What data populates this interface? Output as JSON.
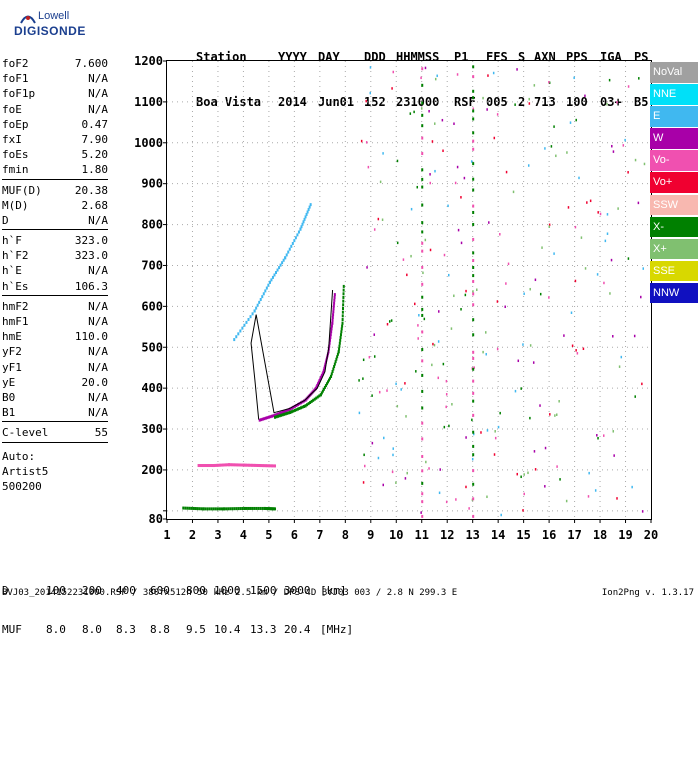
{
  "logo": {
    "line1": "Lowell",
    "line2": "DIGISONDE"
  },
  "header": {
    "labels": [
      "Station",
      "YYYY",
      "DAY",
      "DDD",
      "HHMMSS",
      "P1",
      "FFS",
      "S",
      "AXN",
      "PPS",
      "IGA",
      "PS"
    ],
    "values": [
      "Boa Vista",
      "2014",
      "Jun01",
      "152",
      "231000",
      "RSF",
      "005",
      "2",
      "713",
      "100",
      "03+",
      "B5"
    ]
  },
  "scaled_params": {
    "groups": [
      [
        {
          "name": "foF2",
          "value": "7.600"
        },
        {
          "name": "foF1",
          "value": "N/A"
        },
        {
          "name": "foF1p",
          "value": "N/A"
        },
        {
          "name": "foE",
          "value": "N/A"
        },
        {
          "name": "foEp",
          "value": "0.47"
        },
        {
          "name": "fxI",
          "value": "7.90"
        },
        {
          "name": "foEs",
          "value": "5.20"
        },
        {
          "name": "fmin",
          "value": "1.80"
        }
      ],
      [
        {
          "name": "MUF(D)",
          "value": "20.38"
        },
        {
          "name": "M(D)",
          "value": "2.68"
        },
        {
          "name": "D",
          "value": "N/A"
        }
      ],
      [
        {
          "name": "h`F",
          "value": "323.0"
        },
        {
          "name": "h`F2",
          "value": "323.0"
        },
        {
          "name": "h`E",
          "value": "N/A"
        },
        {
          "name": "h`Es",
          "value": "106.3"
        }
      ],
      [
        {
          "name": "hmF2",
          "value": "N/A"
        },
        {
          "name": "hmF1",
          "value": "N/A"
        },
        {
          "name": "hmE",
          "value": "110.0"
        },
        {
          "name": "yF2",
          "value": "N/A"
        },
        {
          "name": "yF1",
          "value": "N/A"
        },
        {
          "name": "yE",
          "value": "20.0"
        },
        {
          "name": "B0",
          "value": "N/A"
        },
        {
          "name": "B1",
          "value": "N/A"
        }
      ],
      [
        {
          "name": "C-level",
          "value": "55"
        }
      ]
    ],
    "auto_lines": [
      "Auto:",
      "Artist5",
      "500200"
    ]
  },
  "legend": [
    {
      "label": "NoVal",
      "color": "#a0a0a0"
    },
    {
      "label": "NNE",
      "color": "#00e0f8"
    },
    {
      "label": "E",
      "color": "#40b8f0"
    },
    {
      "label": "W",
      "color": "#a800a8"
    },
    {
      "label": "Vo-",
      "color": "#f050b0"
    },
    {
      "label": "Vo+",
      "color": "#f00030"
    },
    {
      "label": "SSW",
      "color": "#f8b8b0"
    },
    {
      "label": "X-",
      "color": "#008000"
    },
    {
      "label": "X+",
      "color": "#80c070"
    },
    {
      "label": "SSE",
      "color": "#d8d800"
    },
    {
      "label": "NNW",
      "color": "#1010c0"
    }
  ],
  "distance_table": {
    "d_label": "D",
    "d_values": [
      "100",
      "200",
      "400",
      "600",
      "800",
      "1000",
      "1500",
      "3000"
    ],
    "d_unit": "[km]",
    "muf_label": "MUF",
    "muf_values": [
      "8.0",
      "8.0",
      "8.3",
      "8.8",
      "9.5",
      "10.4",
      "13.3",
      "20.4"
    ],
    "muf_unit": "[MHz]"
  },
  "footer": {
    "file_info": "BVJ03_2014152231000.RSF / 380fx512h 50 kHz 2.5 km / DPS-4D BVJ03 003 / 2.8 N 299.3 E",
    "version": "Ion2Png v. 1.3.17"
  },
  "chart_data": {
    "type": "scatter",
    "xlabel": "",
    "ylabel": "",
    "xlim": [
      1,
      20
    ],
    "ylim": [
      80,
      1200
    ],
    "x_ticks": [
      1,
      2,
      3,
      4,
      5,
      6,
      7,
      8,
      9,
      10,
      11,
      12,
      13,
      14,
      15,
      16,
      17,
      18,
      19,
      20
    ],
    "y_ticks": [
      80,
      100,
      200,
      300,
      400,
      500,
      600,
      700,
      800,
      900,
      1000,
      1100,
      1200
    ],
    "y_tick_labels": [
      "80",
      "",
      "200",
      "300",
      "400",
      "500",
      "600",
      "700",
      "800",
      "900",
      "1000",
      "1100",
      "1200"
    ],
    "grid": "dotted vertical and horizontal",
    "traces": [
      {
        "name": "O-trace F2",
        "color": "#a800a8",
        "x": [
          4.6,
          5.2,
          5.8,
          6.4,
          6.8,
          7.1,
          7.3,
          7.45,
          7.55
        ],
        "y": [
          323,
          335,
          350,
          372,
          400,
          440,
          490,
          560,
          630
        ]
      },
      {
        "name": "X-trace F2",
        "color": "#008000",
        "x": [
          5.2,
          5.8,
          6.4,
          7.0,
          7.4,
          7.7,
          7.85,
          7.9
        ],
        "y": [
          330,
          342,
          358,
          385,
          430,
          490,
          560,
          650
        ]
      },
      {
        "name": "F2 layer trace",
        "color": "#000000",
        "x": [
          4.6,
          4.45,
          4.3,
          4.5,
          5.2,
          5.8,
          6.4,
          6.9,
          7.2,
          7.35,
          7.5
        ],
        "y": [
          323,
          420,
          510,
          580,
          340,
          350,
          370,
          400,
          440,
          500,
          640
        ]
      },
      {
        "name": "Es band 110 km",
        "color": "#008000",
        "x": [
          1.6,
          2.4,
          3.2,
          4.0,
          4.8,
          5.2
        ],
        "y": [
          108,
          106,
          106,
          107,
          107,
          106
        ]
      },
      {
        "name": "Es band 212 km",
        "color": "#f050b0",
        "x": [
          2.2,
          2.8,
          3.4,
          4.0,
          4.6,
          5.2
        ],
        "y": [
          212,
          212,
          214,
          213,
          212,
          211
        ]
      },
      {
        "name": "Spread F oblique",
        "color": "#40b8f0",
        "x": [
          3.6,
          4.4,
          5.0,
          5.6,
          6.2,
          6.6
        ],
        "y": [
          520,
          590,
          660,
          720,
          790,
          850
        ]
      }
    ]
  }
}
